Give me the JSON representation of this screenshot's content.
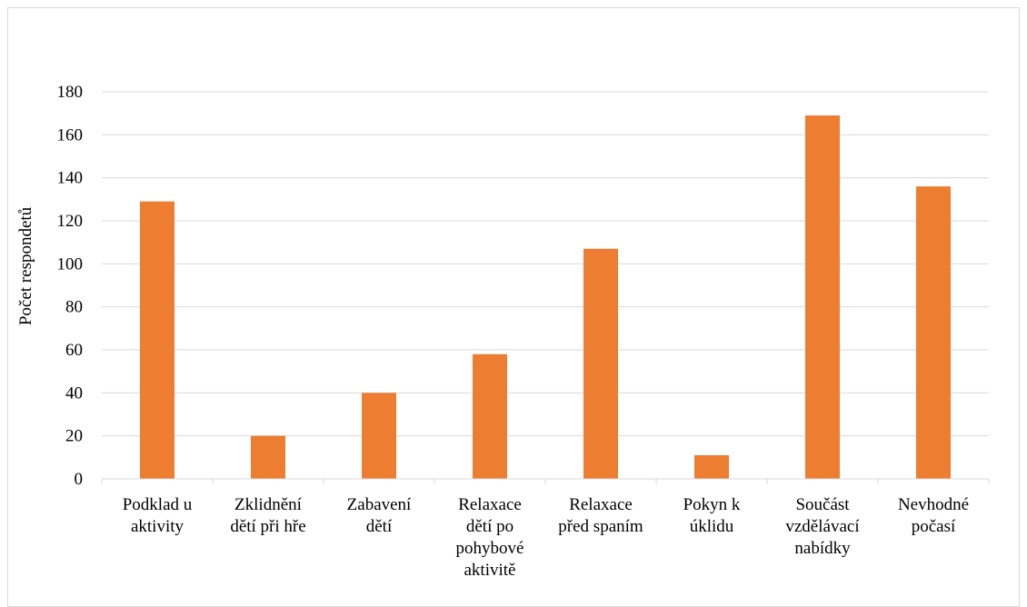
{
  "chart_data": {
    "type": "bar",
    "categories": [
      [
        "Podklad u",
        "aktivity"
      ],
      [
        "Zklidnění",
        "dětí při hře"
      ],
      [
        "Zabavení",
        "dětí"
      ],
      [
        "Relaxace",
        "dětí po",
        "pohybové",
        "aktivitě"
      ],
      [
        "Relaxace",
        "před spaním"
      ],
      [
        "Pokyn k",
        "úklidu"
      ],
      [
        "Součást",
        "vzdělávací",
        "nabídky"
      ],
      [
        "Nevhodné",
        "počasí"
      ]
    ],
    "values": [
      129,
      20,
      40,
      58,
      107,
      11,
      169,
      136
    ],
    "title": "",
    "xlabel": "",
    "ylabel": "Počet respondetů",
    "ylim": [
      0,
      180
    ],
    "yticks": [
      0,
      20,
      40,
      60,
      80,
      100,
      120,
      140,
      160,
      180
    ],
    "grid": true,
    "bar_color": "#ed7d31",
    "grid_color": "#d9d9d9"
  }
}
